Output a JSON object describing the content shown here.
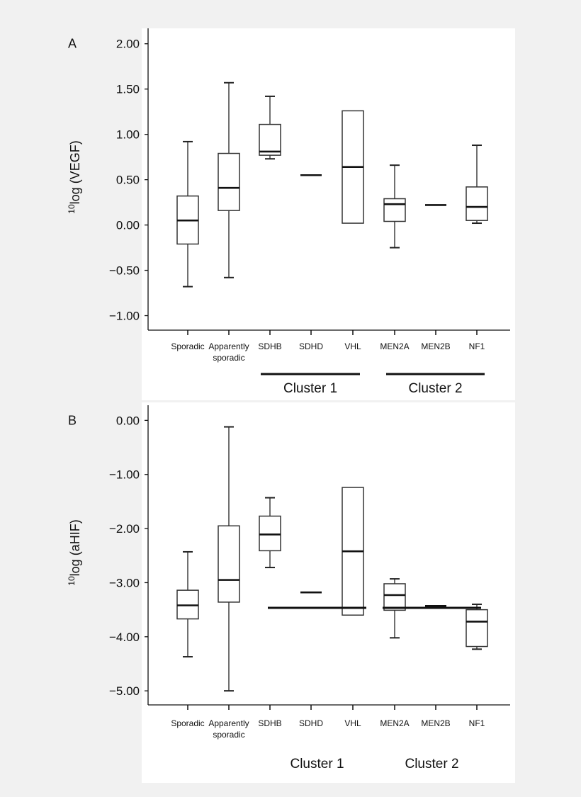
{
  "chart_data": [
    {
      "type": "box",
      "panel_label": "A",
      "ylabel_sup": "10",
      "ylabel": "log (VEGF)",
      "ylim": [
        -1.16,
        2.17
      ],
      "yticks": [
        "2.00",
        "1.50",
        "1.00",
        "0.50",
        "0.00",
        "−0.50",
        "−1.00"
      ],
      "ytick_values": [
        2.0,
        1.5,
        1.0,
        0.5,
        0.0,
        -0.5,
        -1.0
      ],
      "categories": [
        "Sporadic",
        "Apparently sporadic",
        "SDHB",
        "SDHD",
        "VHL",
        "MEN2A",
        "MEN2B",
        "NF1"
      ],
      "category_lines": [
        [
          "Sporadic"
        ],
        [
          "Apparently",
          "sporadic"
        ],
        [
          "SDHB"
        ],
        [
          "SDHD"
        ],
        [
          "VHL"
        ],
        [
          "MEN2A"
        ],
        [
          "MEN2B"
        ],
        [
          "NF1"
        ]
      ],
      "groups": [
        {
          "label": "Cluster 1",
          "members": [
            "SDHB",
            "SDHD",
            "VHL"
          ]
        },
        {
          "label": "Cluster 2",
          "members": [
            "MEN2A",
            "MEN2B",
            "NF1"
          ]
        }
      ],
      "boxes": [
        {
          "min": -0.68,
          "q1": -0.21,
          "median": 0.05,
          "q3": 0.32,
          "max": 0.92
        },
        {
          "min": -0.58,
          "q1": 0.16,
          "median": 0.41,
          "q3": 0.79,
          "max": 1.57
        },
        {
          "min": 0.73,
          "q1": 0.77,
          "median": 0.81,
          "q3": 1.11,
          "max": 1.42
        },
        {
          "min": 0.55,
          "q1": 0.55,
          "median": 0.55,
          "q3": 0.55,
          "max": 0.55
        },
        {
          "min": 0.02,
          "q1": 0.02,
          "median": 0.64,
          "q3": 1.26,
          "max": 1.26
        },
        {
          "min": -0.25,
          "q1": 0.04,
          "median": 0.23,
          "q3": 0.29,
          "max": 0.66
        },
        {
          "min": 0.22,
          "q1": 0.22,
          "median": 0.22,
          "q3": 0.22,
          "max": 0.22
        },
        {
          "min": 0.02,
          "q1": 0.05,
          "median": 0.2,
          "q3": 0.42,
          "max": 0.88
        }
      ]
    },
    {
      "type": "box",
      "panel_label": "B",
      "ylabel_sup": "10",
      "ylabel": "log (aHIF)",
      "ylim": [
        -5.26,
        0.28
      ],
      "yticks": [
        "0.00",
        "−1.00",
        "−2.00",
        "−3.00",
        "−4.00",
        "−5.00"
      ],
      "ytick_values": [
        0,
        -1,
        -2,
        -3,
        -4,
        -5
      ],
      "categories": [
        "Sporadic",
        "Apparently sporadic",
        "SDHB",
        "SDHD",
        "VHL",
        "MEN2A",
        "MEN2B",
        "NF1"
      ],
      "category_lines": [
        [
          "Sporadic"
        ],
        [
          "Apparently",
          "sporadic"
        ],
        [
          "SDHB"
        ],
        [
          "SDHD"
        ],
        [
          "VHL"
        ],
        [
          "MEN2A"
        ],
        [
          "MEN2B"
        ],
        [
          "NF1"
        ]
      ],
      "groups": [
        {
          "label": "Cluster 1",
          "members": [
            "SDHB",
            "SDHD",
            "VHL"
          ]
        },
        {
          "label": "Cluster 2",
          "members": [
            "MEN2A",
            "MEN2B",
            "NF1"
          ]
        }
      ],
      "boxes": [
        {
          "min": -4.37,
          "q1": -3.67,
          "median": -3.42,
          "q3": -3.14,
          "max": -2.43
        },
        {
          "min": -5.0,
          "q1": -3.36,
          "median": -2.95,
          "q3": -1.95,
          "max": -0.12
        },
        {
          "min": -2.72,
          "q1": -2.41,
          "median": -2.11,
          "q3": -1.77,
          "max": -1.43
        },
        {
          "min": -3.18,
          "q1": -3.18,
          "median": -3.18,
          "q3": -3.18,
          "max": -3.18
        },
        {
          "min": -3.6,
          "q1": -3.6,
          "median": -2.42,
          "q3": -1.24,
          "max": -1.24
        },
        {
          "min": -4.02,
          "q1": -3.51,
          "median": -3.23,
          "q3": -3.02,
          "max": -2.93
        },
        {
          "min": -3.43,
          "q1": -3.43,
          "median": -3.43,
          "q3": -3.43,
          "max": -3.43
        },
        {
          "min": -4.23,
          "q1": -4.18,
          "median": -3.72,
          "q3": -3.5,
          "max": -3.4
        }
      ]
    }
  ]
}
